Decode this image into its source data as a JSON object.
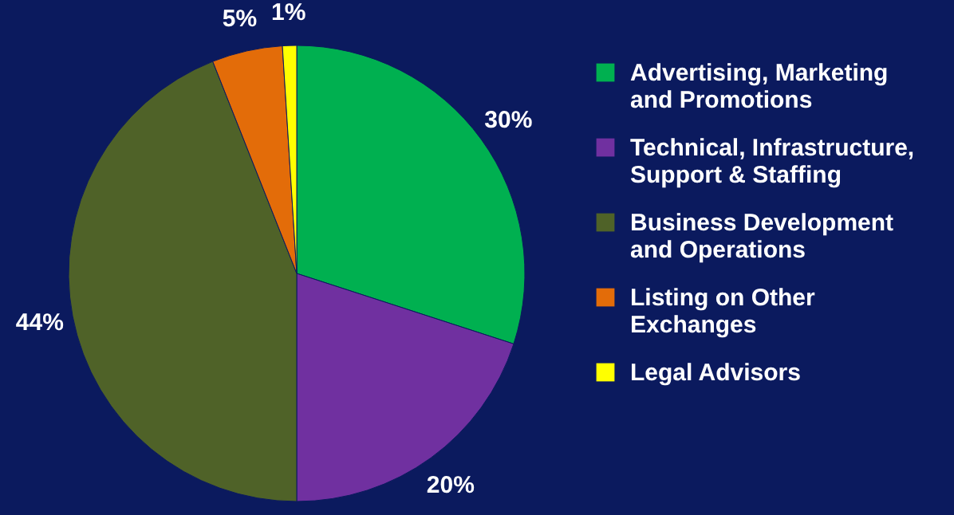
{
  "chart_data": {
    "type": "pie",
    "categories": [
      "Advertising, Marketing and Promotions",
      "Technical, Infrastructure, Support & Staffing",
      "Business Development and Operations",
      "Listing on Other Exchanges",
      "Legal Advisors"
    ],
    "values": [
      30,
      20,
      44,
      5,
      1
    ],
    "colors": [
      "#00b050",
      "#7030a0",
      "#4f6228",
      "#e36c09",
      "#ffff00"
    ],
    "value_labels": [
      "30%",
      "20%",
      "44%",
      "5%",
      "1%"
    ],
    "legend": "right"
  }
}
